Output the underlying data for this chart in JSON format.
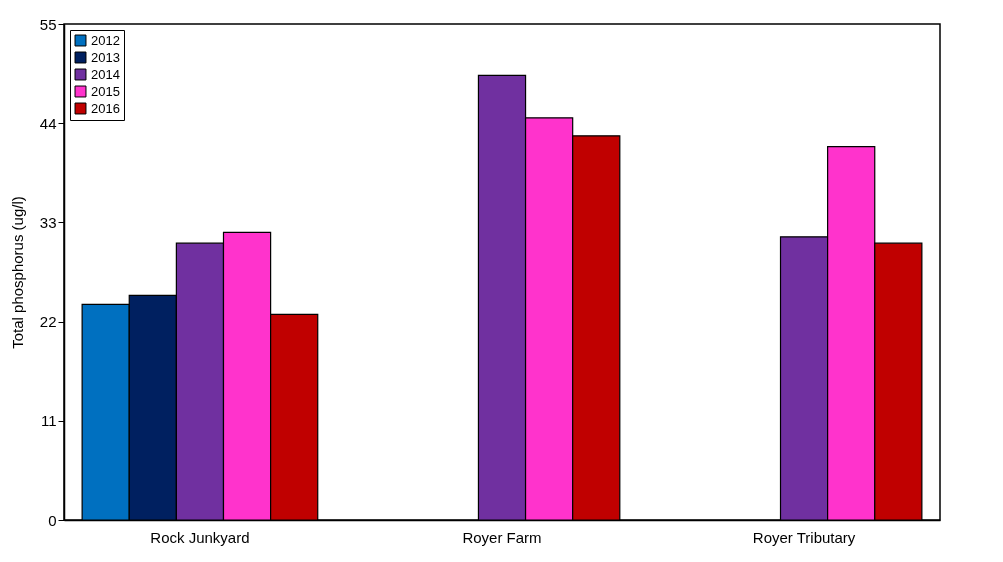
{
  "chart_data": {
    "type": "bar",
    "ylabel": "Total phosphorus (ug/l)",
    "categories": [
      "Rock Junkyard",
      "Royer Farm",
      "Royer Tributary"
    ],
    "series": [
      {
        "name": "2012",
        "color": "#0070c0",
        "values": [
          23.9,
          null,
          null
        ]
      },
      {
        "name": "2013",
        "color": "#002060",
        "values": [
          24.9,
          null,
          null
        ]
      },
      {
        "name": "2014",
        "color": "#7030a0",
        "values": [
          30.7,
          49.3,
          31.4
        ]
      },
      {
        "name": "2015",
        "color": "#ff33cc",
        "values": [
          31.9,
          44.6,
          41.4
        ]
      },
      {
        "name": "2016",
        "color": "#c00000",
        "values": [
          22.8,
          42.6,
          30.7
        ]
      }
    ],
    "ylim": [
      0,
      55
    ],
    "yticks": [
      0,
      11,
      22,
      33,
      44,
      55
    ],
    "grid": false,
    "legend": "top left"
  }
}
